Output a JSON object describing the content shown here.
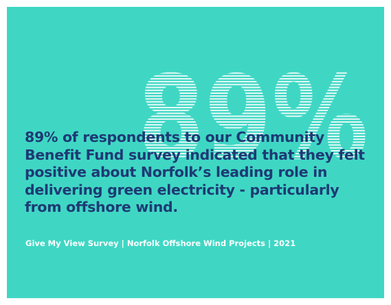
{
  "graphic": {
    "big_stat": "89%"
  },
  "headline": "89% of respondents to our Community Benefit Fund survey indicated that they felt positive about Norfolk’s leading role in delivering green electricity - particularly from offshore wind.",
  "source": "Give My View Survey | Norfolk Offshore Wind Projects | 2021",
  "colors": {
    "background": "#3fd7c4",
    "headline": "#1e3a74",
    "stat_lines": "#ffffff",
    "source_text": "#ffffff"
  }
}
